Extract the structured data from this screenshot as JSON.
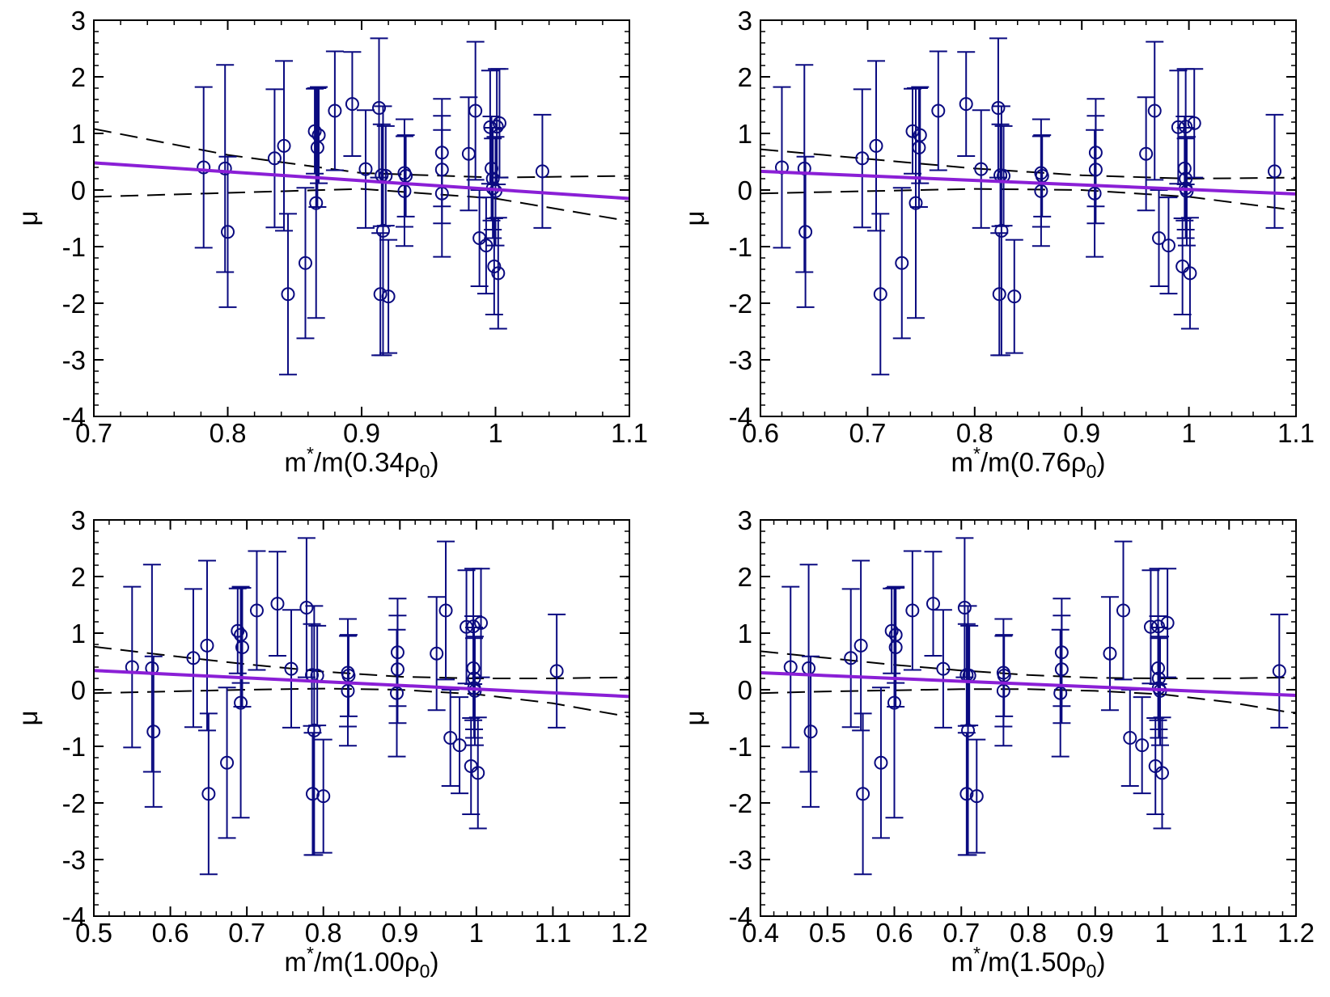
{
  "colors": {
    "points": "#0a0a80",
    "fit": "#8a1fd6",
    "band": "#000000",
    "frame": "#000000"
  },
  "chart_data": [
    {
      "type": "scatter",
      "xlabel": {
        "base": "m",
        "sup": "*",
        "mid": "/m(0.34ρ",
        "sub": "0",
        "end": ")"
      },
      "ylabel": "μ",
      "xlim": [
        0.7,
        1.1
      ],
      "ylim": [
        -4,
        3
      ],
      "xticks": [
        "0.7",
        "0.8",
        "0.9",
        "1",
        "1.1"
      ],
      "yticks": [
        "-4",
        "-3",
        "-2",
        "-1",
        "0",
        "1",
        "2",
        "3"
      ],
      "fit": {
        "x": [
          0.7,
          1.1
        ],
        "y": [
          0.48,
          -0.15
        ]
      },
      "band_upper": {
        "x": [
          0.7,
          0.8,
          0.9,
          1.0,
          1.1
        ],
        "y": [
          1.08,
          0.62,
          0.3,
          0.22,
          0.25
        ]
      },
      "band_lower": {
        "x": [
          0.7,
          0.8,
          0.9,
          1.0,
          1.1
        ],
        "y": [
          -0.12,
          -0.05,
          0.02,
          -0.15,
          -0.55
        ]
      },
      "points": [
        {
          "x": 0.782,
          "y": 0.4,
          "err": 1.42
        },
        {
          "x": 0.798,
          "y": 0.38,
          "err": 1.83
        },
        {
          "x": 0.8,
          "y": -0.74,
          "err": 1.33
        },
        {
          "x": 0.835,
          "y": 0.56,
          "err": 1.22
        },
        {
          "x": 0.842,
          "y": 0.78,
          "err": 1.5
        },
        {
          "x": 0.845,
          "y": -1.84,
          "err": 1.42
        },
        {
          "x": 0.858,
          "y": -1.29,
          "err": 1.33
        },
        {
          "x": 0.865,
          "y": 1.04,
          "err": 0.75
        },
        {
          "x": 0.866,
          "y": -0.23,
          "err": 2.03
        },
        {
          "x": 0.867,
          "y": 0.75,
          "err": 1.05
        },
        {
          "x": 0.868,
          "y": 0.97,
          "err": 0.85
        },
        {
          "x": 0.88,
          "y": 1.4,
          "err": 1.05
        },
        {
          "x": 0.893,
          "y": 1.52,
          "err": 0.92
        },
        {
          "x": 0.903,
          "y": 0.37,
          "err": 1.04
        },
        {
          "x": 0.913,
          "y": 1.45,
          "err": 1.23
        },
        {
          "x": 0.914,
          "y": -1.84,
          "err": 1.08
        },
        {
          "x": 0.915,
          "y": 0.26,
          "err": 0.9
        },
        {
          "x": 0.916,
          "y": -0.72,
          "err": 2.2
        },
        {
          "x": 0.918,
          "y": 0.25,
          "err": 0.88
        },
        {
          "x": 0.92,
          "y": -1.88,
          "err": 1.0
        },
        {
          "x": 0.932,
          "y": 0.3,
          "err": 0.95
        },
        {
          "x": 0.932,
          "y": -0.02,
          "err": 0.97
        },
        {
          "x": 0.933,
          "y": 0.25,
          "err": 0.72
        },
        {
          "x": 0.96,
          "y": 0.66,
          "err": 0.95
        },
        {
          "x": 0.96,
          "y": 0.36,
          "err": 0.95
        },
        {
          "x": 0.96,
          "y": -0.06,
          "err": 1.12
        },
        {
          "x": 0.98,
          "y": 0.64,
          "err": 1.0
        },
        {
          "x": 0.985,
          "y": 1.4,
          "err": 1.22
        },
        {
          "x": 0.988,
          "y": -0.85,
          "err": 0.85
        },
        {
          "x": 0.993,
          "y": -0.98,
          "err": 0.85
        },
        {
          "x": 0.996,
          "y": 1.11,
          "err": 1.0
        },
        {
          "x": 0.997,
          "y": 0.38,
          "err": 0.92
        },
        {
          "x": 0.998,
          "y": 0.2,
          "err": 0.9
        },
        {
          "x": 0.998,
          "y": 0.03,
          "err": 0.88
        },
        {
          "x": 0.999,
          "y": -1.35,
          "err": 0.85
        },
        {
          "x": 1.0,
          "y": -0.02,
          "err": 0.96
        },
        {
          "x": 1.001,
          "y": 1.12,
          "err": 1.02
        },
        {
          "x": 1.002,
          "y": -1.47,
          "err": 0.98
        },
        {
          "x": 1.003,
          "y": 1.18,
          "err": 0.96
        },
        {
          "x": 1.035,
          "y": 0.33,
          "err": 1.0
        }
      ]
    },
    {
      "type": "scatter",
      "xlabel": {
        "base": "m",
        "sup": "*",
        "mid": "/m(0.76ρ",
        "sub": "0",
        "end": ")"
      },
      "ylabel": "μ",
      "xlim": [
        0.6,
        1.1
      ],
      "ylim": [
        -4,
        3
      ],
      "xticks": [
        "0.6",
        "0.7",
        "0.8",
        "0.9",
        "1",
        "1.1"
      ],
      "yticks": [
        "-4",
        "-3",
        "-2",
        "-1",
        "0",
        "1",
        "2",
        "3"
      ],
      "fit": {
        "x": [
          0.6,
          1.1
        ],
        "y": [
          0.33,
          -0.07
        ]
      },
      "band_upper": {
        "x": [
          0.6,
          0.7,
          0.8,
          0.9,
          1.0,
          1.1
        ],
        "y": [
          0.72,
          0.55,
          0.38,
          0.26,
          0.2,
          0.22
        ]
      },
      "band_lower": {
        "x": [
          0.6,
          0.7,
          0.8,
          0.9,
          1.0,
          1.1
        ],
        "y": [
          -0.06,
          -0.02,
          0.02,
          0.0,
          -0.12,
          -0.36
        ]
      },
      "points": [
        {
          "x": 0.62,
          "y": 0.4,
          "err": 1.42
        },
        {
          "x": 0.641,
          "y": 0.38,
          "err": 1.83
        },
        {
          "x": 0.642,
          "y": -0.74,
          "err": 1.33
        },
        {
          "x": 0.695,
          "y": 0.56,
          "err": 1.22
        },
        {
          "x": 0.708,
          "y": 0.78,
          "err": 1.5
        },
        {
          "x": 0.712,
          "y": -1.84,
          "err": 1.42
        },
        {
          "x": 0.732,
          "y": -1.29,
          "err": 1.33
        },
        {
          "x": 0.742,
          "y": 1.04,
          "err": 0.75
        },
        {
          "x": 0.745,
          "y": -0.23,
          "err": 2.03
        },
        {
          "x": 0.748,
          "y": 0.75,
          "err": 1.05
        },
        {
          "x": 0.749,
          "y": 0.97,
          "err": 0.85
        },
        {
          "x": 0.766,
          "y": 1.4,
          "err": 1.05
        },
        {
          "x": 0.792,
          "y": 1.52,
          "err": 0.92
        },
        {
          "x": 0.806,
          "y": 0.37,
          "err": 1.04
        },
        {
          "x": 0.822,
          "y": 1.45,
          "err": 1.23
        },
        {
          "x": 0.823,
          "y": -1.84,
          "err": 1.08
        },
        {
          "x": 0.824,
          "y": 0.26,
          "err": 0.9
        },
        {
          "x": 0.825,
          "y": -0.72,
          "err": 2.2
        },
        {
          "x": 0.827,
          "y": 0.25,
          "err": 0.88
        },
        {
          "x": 0.837,
          "y": -1.88,
          "err": 1.0
        },
        {
          "x": 0.862,
          "y": 0.3,
          "err": 0.95
        },
        {
          "x": 0.862,
          "y": -0.02,
          "err": 0.97
        },
        {
          "x": 0.863,
          "y": 0.25,
          "err": 0.72
        },
        {
          "x": 0.913,
          "y": 0.66,
          "err": 0.95
        },
        {
          "x": 0.913,
          "y": 0.36,
          "err": 0.95
        },
        {
          "x": 0.912,
          "y": -0.06,
          "err": 1.12
        },
        {
          "x": 0.96,
          "y": 0.64,
          "err": 1.0
        },
        {
          "x": 0.968,
          "y": 1.4,
          "err": 1.22
        },
        {
          "x": 0.972,
          "y": -0.85,
          "err": 0.85
        },
        {
          "x": 0.981,
          "y": -0.98,
          "err": 0.85
        },
        {
          "x": 0.99,
          "y": 1.11,
          "err": 1.0
        },
        {
          "x": 0.996,
          "y": 0.38,
          "err": 0.92
        },
        {
          "x": 0.997,
          "y": 0.2,
          "err": 0.9
        },
        {
          "x": 0.997,
          "y": 0.03,
          "err": 0.88
        },
        {
          "x": 0.994,
          "y": -1.35,
          "err": 0.85
        },
        {
          "x": 0.998,
          "y": -0.02,
          "err": 0.96
        },
        {
          "x": 0.997,
          "y": 1.12,
          "err": 1.02
        },
        {
          "x": 1.001,
          "y": -1.47,
          "err": 0.98
        },
        {
          "x": 1.005,
          "y": 1.18,
          "err": 0.96
        },
        {
          "x": 1.08,
          "y": 0.33,
          "err": 1.0
        }
      ]
    },
    {
      "type": "scatter",
      "xlabel": {
        "base": "m",
        "sup": "*",
        "mid": "/m(1.00ρ",
        "sub": "0",
        "end": ")"
      },
      "ylabel": "μ",
      "xlim": [
        0.5,
        1.2
      ],
      "ylim": [
        -4,
        3
      ],
      "xticks": [
        "0.5",
        "0.6",
        "0.7",
        "0.8",
        "0.9",
        "1",
        "1.1",
        "1.2"
      ],
      "yticks": [
        "-4",
        "-3",
        "-2",
        "-1",
        "0",
        "1",
        "2",
        "3"
      ],
      "fit": {
        "x": [
          0.5,
          1.2
        ],
        "y": [
          0.34,
          -0.12
        ]
      },
      "band_upper": {
        "x": [
          0.5,
          0.6,
          0.7,
          0.8,
          0.9,
          1.0,
          1.1,
          1.2
        ],
        "y": [
          0.76,
          0.6,
          0.45,
          0.32,
          0.23,
          0.2,
          0.2,
          0.22
        ]
      },
      "band_lower": {
        "x": [
          0.5,
          0.6,
          0.7,
          0.8,
          0.9,
          1.0,
          1.1,
          1.2
        ],
        "y": [
          -0.06,
          -0.03,
          0.0,
          0.02,
          0.0,
          -0.08,
          -0.24,
          -0.48
        ]
      },
      "points": [
        {
          "x": 0.55,
          "y": 0.4,
          "err": 1.42
        },
        {
          "x": 0.576,
          "y": 0.38,
          "err": 1.83
        },
        {
          "x": 0.578,
          "y": -0.74,
          "err": 1.33
        },
        {
          "x": 0.63,
          "y": 0.56,
          "err": 1.22
        },
        {
          "x": 0.648,
          "y": 0.78,
          "err": 1.5
        },
        {
          "x": 0.65,
          "y": -1.84,
          "err": 1.42
        },
        {
          "x": 0.674,
          "y": -1.29,
          "err": 1.33
        },
        {
          "x": 0.688,
          "y": 1.04,
          "err": 0.75
        },
        {
          "x": 0.692,
          "y": -0.23,
          "err": 2.03
        },
        {
          "x": 0.694,
          "y": 0.75,
          "err": 1.05
        },
        {
          "x": 0.692,
          "y": 0.97,
          "err": 0.85
        },
        {
          "x": 0.713,
          "y": 1.4,
          "err": 1.05
        },
        {
          "x": 0.74,
          "y": 1.52,
          "err": 0.92
        },
        {
          "x": 0.758,
          "y": 0.37,
          "err": 1.04
        },
        {
          "x": 0.778,
          "y": 1.45,
          "err": 1.23
        },
        {
          "x": 0.786,
          "y": -1.84,
          "err": 1.08
        },
        {
          "x": 0.785,
          "y": 0.26,
          "err": 0.9
        },
        {
          "x": 0.788,
          "y": -0.72,
          "err": 2.2
        },
        {
          "x": 0.792,
          "y": 0.25,
          "err": 0.88
        },
        {
          "x": 0.8,
          "y": -1.88,
          "err": 1.0
        },
        {
          "x": 0.832,
          "y": 0.3,
          "err": 0.95
        },
        {
          "x": 0.832,
          "y": -0.02,
          "err": 0.97
        },
        {
          "x": 0.833,
          "y": 0.25,
          "err": 0.72
        },
        {
          "x": 0.897,
          "y": 0.66,
          "err": 0.95
        },
        {
          "x": 0.897,
          "y": 0.36,
          "err": 0.95
        },
        {
          "x": 0.896,
          "y": -0.06,
          "err": 1.12
        },
        {
          "x": 0.948,
          "y": 0.64,
          "err": 1.0
        },
        {
          "x": 0.96,
          "y": 1.4,
          "err": 1.22
        },
        {
          "x": 0.966,
          "y": -0.85,
          "err": 0.85
        },
        {
          "x": 0.978,
          "y": -0.98,
          "err": 0.85
        },
        {
          "x": 0.987,
          "y": 1.11,
          "err": 1.0
        },
        {
          "x": 0.996,
          "y": 0.38,
          "err": 0.92
        },
        {
          "x": 0.997,
          "y": 0.2,
          "err": 0.9
        },
        {
          "x": 0.997,
          "y": 0.03,
          "err": 0.88
        },
        {
          "x": 0.993,
          "y": -1.35,
          "err": 0.85
        },
        {
          "x": 0.998,
          "y": -0.02,
          "err": 0.96
        },
        {
          "x": 0.996,
          "y": 1.12,
          "err": 1.02
        },
        {
          "x": 1.002,
          "y": -1.47,
          "err": 0.98
        },
        {
          "x": 1.006,
          "y": 1.18,
          "err": 0.96
        },
        {
          "x": 1.105,
          "y": 0.33,
          "err": 1.0
        }
      ]
    },
    {
      "type": "scatter",
      "xlabel": {
        "base": "m",
        "sup": "*",
        "mid": "/m(1.50ρ",
        "sub": "0",
        "end": ")"
      },
      "ylabel": "μ",
      "xlim": [
        0.4,
        1.2
      ],
      "ylim": [
        -4,
        3
      ],
      "xticks": [
        "0.4",
        "0.5",
        "0.6",
        "0.7",
        "0.8",
        "0.9",
        "1",
        "1.1",
        "1.2"
      ],
      "yticks": [
        "-4",
        "-3",
        "-2",
        "-1",
        "0",
        "1",
        "2",
        "3"
      ],
      "fit": {
        "x": [
          0.4,
          1.2
        ],
        "y": [
          0.3,
          -0.1
        ]
      },
      "band_upper": {
        "x": [
          0.4,
          0.5,
          0.6,
          0.7,
          0.8,
          0.9,
          1.0,
          1.1,
          1.2
        ],
        "y": [
          0.68,
          0.56,
          0.44,
          0.34,
          0.26,
          0.21,
          0.2,
          0.2,
          0.22
        ]
      },
      "band_lower": {
        "x": [
          0.4,
          0.5,
          0.6,
          0.7,
          0.8,
          0.9,
          1.0,
          1.1,
          1.2
        ],
        "y": [
          -0.06,
          -0.03,
          -0.01,
          0.01,
          0.01,
          -0.02,
          -0.08,
          -0.22,
          -0.42
        ]
      },
      "points": [
        {
          "x": 0.445,
          "y": 0.4,
          "err": 1.42
        },
        {
          "x": 0.472,
          "y": 0.38,
          "err": 1.83
        },
        {
          "x": 0.475,
          "y": -0.74,
          "err": 1.33
        },
        {
          "x": 0.535,
          "y": 0.56,
          "err": 1.22
        },
        {
          "x": 0.55,
          "y": 0.78,
          "err": 1.5
        },
        {
          "x": 0.553,
          "y": -1.84,
          "err": 1.42
        },
        {
          "x": 0.58,
          "y": -1.29,
          "err": 1.33
        },
        {
          "x": 0.596,
          "y": 1.04,
          "err": 0.75
        },
        {
          "x": 0.6,
          "y": -0.23,
          "err": 2.03
        },
        {
          "x": 0.602,
          "y": 0.75,
          "err": 1.05
        },
        {
          "x": 0.602,
          "y": 0.97,
          "err": 0.85
        },
        {
          "x": 0.627,
          "y": 1.4,
          "err": 1.05
        },
        {
          "x": 0.658,
          "y": 1.52,
          "err": 0.92
        },
        {
          "x": 0.673,
          "y": 0.37,
          "err": 1.04
        },
        {
          "x": 0.705,
          "y": 1.45,
          "err": 1.23
        },
        {
          "x": 0.708,
          "y": -1.84,
          "err": 1.08
        },
        {
          "x": 0.708,
          "y": 0.26,
          "err": 0.9
        },
        {
          "x": 0.71,
          "y": -0.72,
          "err": 2.2
        },
        {
          "x": 0.712,
          "y": 0.25,
          "err": 0.88
        },
        {
          "x": 0.723,
          "y": -1.88,
          "err": 1.0
        },
        {
          "x": 0.763,
          "y": 0.3,
          "err": 0.95
        },
        {
          "x": 0.763,
          "y": -0.02,
          "err": 0.97
        },
        {
          "x": 0.764,
          "y": 0.25,
          "err": 0.72
        },
        {
          "x": 0.85,
          "y": 0.66,
          "err": 0.95
        },
        {
          "x": 0.85,
          "y": 0.36,
          "err": 0.95
        },
        {
          "x": 0.848,
          "y": -0.06,
          "err": 1.12
        },
        {
          "x": 0.922,
          "y": 0.64,
          "err": 1.0
        },
        {
          "x": 0.942,
          "y": 1.4,
          "err": 1.22
        },
        {
          "x": 0.952,
          "y": -0.85,
          "err": 0.85
        },
        {
          "x": 0.97,
          "y": -0.98,
          "err": 0.85
        },
        {
          "x": 0.983,
          "y": 1.11,
          "err": 1.0
        },
        {
          "x": 0.994,
          "y": 0.38,
          "err": 0.92
        },
        {
          "x": 0.995,
          "y": 0.2,
          "err": 0.9
        },
        {
          "x": 0.995,
          "y": 0.03,
          "err": 0.88
        },
        {
          "x": 0.99,
          "y": -1.35,
          "err": 0.85
        },
        {
          "x": 0.997,
          "y": -0.02,
          "err": 0.96
        },
        {
          "x": 0.994,
          "y": 1.12,
          "err": 1.02
        },
        {
          "x": 1.0,
          "y": -1.47,
          "err": 0.98
        },
        {
          "x": 1.008,
          "y": 1.18,
          "err": 0.96
        },
        {
          "x": 1.175,
          "y": 0.33,
          "err": 1.0
        }
      ]
    }
  ]
}
